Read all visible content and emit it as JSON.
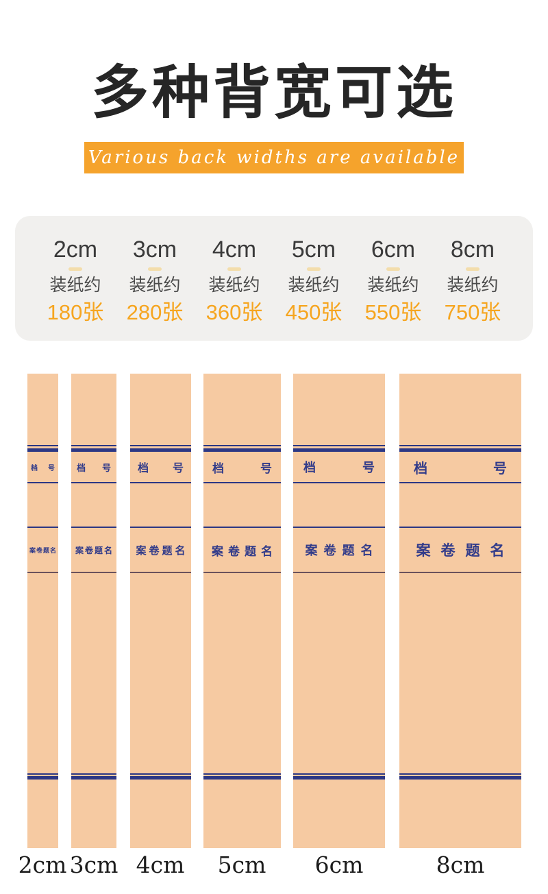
{
  "header": {
    "title": "多种背宽可选",
    "banner_text": "Various back widths are available"
  },
  "colors": {
    "banner_orange": "#f5a32c",
    "capacity_orange": "#f6a51f",
    "spine_paper": "#f6caa2",
    "spine_navy": "#2c3784",
    "card_background": "#f1f0ee",
    "title_black": "#262626"
  },
  "capacity_card": {
    "columns": [
      {
        "size": "2cm",
        "note": "装纸约",
        "capacity": "180张"
      },
      {
        "size": "3cm",
        "note": "装纸约",
        "capacity": "280张"
      },
      {
        "size": "4cm",
        "note": "装纸约",
        "capacity": "360张"
      },
      {
        "size": "5cm",
        "note": "装纸约",
        "capacity": "450张"
      },
      {
        "size": "6cm",
        "note": "装纸约",
        "capacity": "550张"
      },
      {
        "size": "8cm",
        "note": "装纸约",
        "capacity": "750张"
      }
    ]
  },
  "spine_text": {
    "file_no_left": "档",
    "file_no_right": "号",
    "case_title": "案卷题名"
  },
  "spines": [
    {
      "label": "2cm"
    },
    {
      "label": "3cm"
    },
    {
      "label": "4cm"
    },
    {
      "label": "5cm"
    },
    {
      "label": "6cm"
    },
    {
      "label": "8cm"
    }
  ]
}
